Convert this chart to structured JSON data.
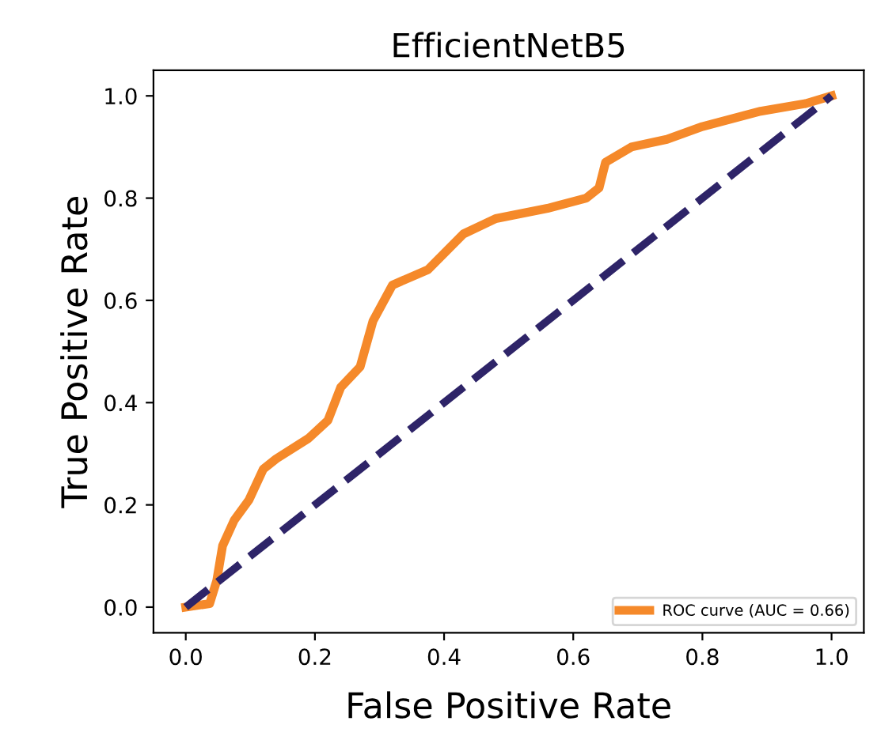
{
  "chart_data": {
    "type": "line",
    "title": "EfficientNetB5",
    "xlabel": "False Positive Rate",
    "ylabel": "True Positive Rate",
    "series": [
      {
        "name": "ROC curve (AUC = 0.66)",
        "color": "#f5892a",
        "line_style": "solid",
        "x": [
          0,
          0.037,
          0.048,
          0.057,
          0.075,
          0.098,
          0.12,
          0.14,
          0.19,
          0.22,
          0.24,
          0.27,
          0.29,
          0.32,
          0.375,
          0.43,
          0.48,
          0.56,
          0.62,
          0.64,
          0.65,
          0.69,
          0.745,
          0.8,
          0.89,
          0.96,
          1
        ],
        "values": [
          0,
          0.007,
          0.052,
          0.12,
          0.17,
          0.21,
          0.27,
          0.29,
          0.33,
          0.365,
          0.43,
          0.47,
          0.56,
          0.63,
          0.66,
          0.73,
          0.76,
          0.78,
          0.8,
          0.82,
          0.87,
          0.9,
          0.915,
          0.94,
          0.97,
          0.985,
          1
        ]
      },
      {
        "color": "#2e2468",
        "line_style": "dashed",
        "x": [
          0,
          1
        ],
        "values": [
          0,
          1
        ]
      }
    ],
    "xlim": [
      -0.05,
      1.05
    ],
    "ylim": [
      -0.05,
      1.05
    ],
    "xticks": [
      {
        "value": 0,
        "label": "0.0"
      },
      0.2,
      0.4,
      0.6,
      0.8,
      {
        "value": 1,
        "label": "1.0"
      }
    ],
    "yticks": [
      {
        "value": 0,
        "label": "0.0"
      },
      0.2,
      0.4,
      0.6,
      0.8,
      {
        "value": 1,
        "label": "1.0"
      }
    ],
    "legend": "lower right",
    "grid": false,
    "marker": "none"
  }
}
